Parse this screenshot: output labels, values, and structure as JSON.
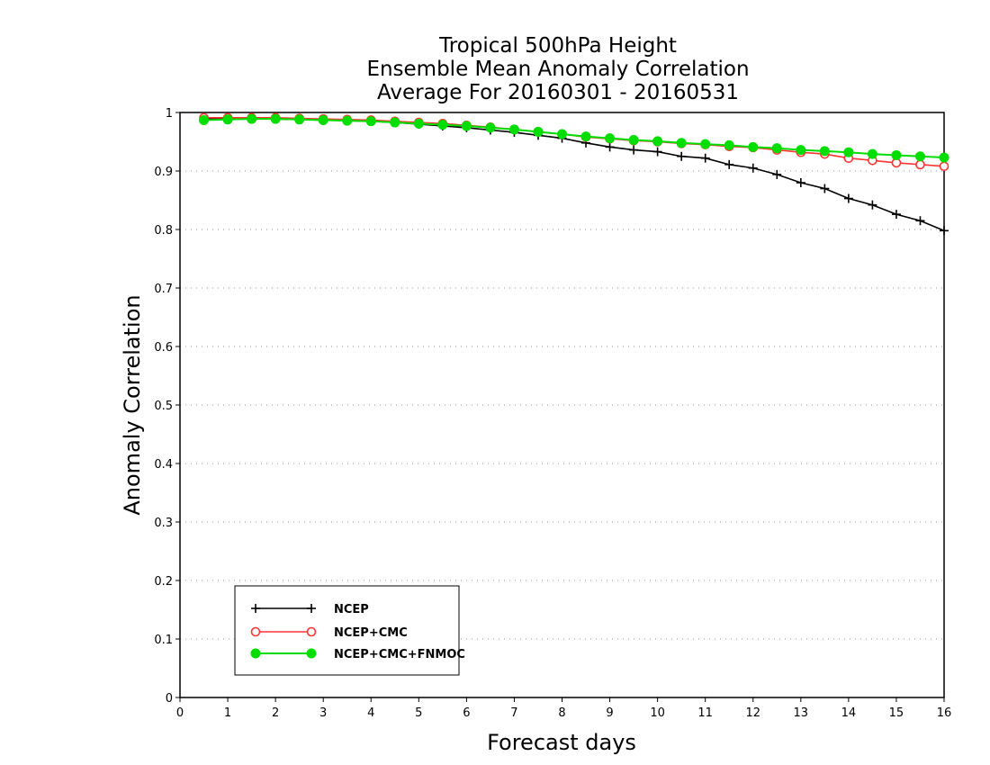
{
  "chart_data": {
    "type": "line",
    "title_lines": [
      "Tropical 500hPa Height",
      "Ensemble Mean Anomaly Correlation",
      "Average For 20160301 - 20160531"
    ],
    "xlabel": "Forecast days",
    "ylabel": "Anomaly Correlation",
    "xlim": [
      0,
      16
    ],
    "ylim": [
      0,
      1
    ],
    "x_ticks": [
      "0",
      "1",
      "2",
      "3",
      "4",
      "5",
      "6",
      "7",
      "8",
      "9",
      "10",
      "11",
      "12",
      "13",
      "14",
      "15",
      "16"
    ],
    "y_ticks": [
      "0",
      "0.1",
      "0.2",
      "0.3",
      "0.4",
      "0.5",
      "0.6",
      "0.7",
      "0.8",
      "0.9",
      "1"
    ],
    "grid": "horizontal dotted",
    "legend_position": "bottom-left",
    "x": [
      0.5,
      1,
      1.5,
      2,
      2.5,
      3,
      3.5,
      4,
      4.5,
      5,
      5.5,
      6,
      6.5,
      7,
      7.5,
      8,
      8.5,
      9,
      9.5,
      10,
      10.5,
      11,
      11.5,
      12,
      12.5,
      13,
      13.5,
      14,
      14.5,
      15,
      15.5,
      16
    ],
    "series": [
      {
        "name": "NCEP",
        "color": "#000000",
        "marker": "plus",
        "values": [
          0.989,
          0.989,
          0.989,
          0.989,
          0.988,
          0.987,
          0.986,
          0.985,
          0.983,
          0.98,
          0.977,
          0.974,
          0.97,
          0.966,
          0.961,
          0.956,
          0.948,
          0.941,
          0.936,
          0.933,
          0.925,
          0.922,
          0.911,
          0.905,
          0.894,
          0.88,
          0.87,
          0.853,
          0.842,
          0.826,
          0.815,
          0.798
        ]
      },
      {
        "name": "NCEP+CMC",
        "color": "#ff3333",
        "marker": "open-circle",
        "values": [
          0.991,
          0.991,
          0.991,
          0.991,
          0.99,
          0.989,
          0.988,
          0.987,
          0.985,
          0.983,
          0.981,
          0.978,
          0.975,
          0.971,
          0.967,
          0.963,
          0.958,
          0.955,
          0.952,
          0.95,
          0.947,
          0.945,
          0.942,
          0.94,
          0.936,
          0.932,
          0.929,
          0.922,
          0.918,
          0.914,
          0.911,
          0.908
        ]
      },
      {
        "name": "NCEP+CMC+FNMOC",
        "color": "#00dd00",
        "marker": "filled-circle",
        "values": [
          0.987,
          0.988,
          0.989,
          0.989,
          0.988,
          0.987,
          0.986,
          0.985,
          0.983,
          0.981,
          0.979,
          0.977,
          0.974,
          0.971,
          0.967,
          0.963,
          0.959,
          0.956,
          0.953,
          0.951,
          0.948,
          0.946,
          0.944,
          0.941,
          0.939,
          0.936,
          0.934,
          0.932,
          0.929,
          0.927,
          0.925,
          0.923
        ]
      }
    ]
  }
}
